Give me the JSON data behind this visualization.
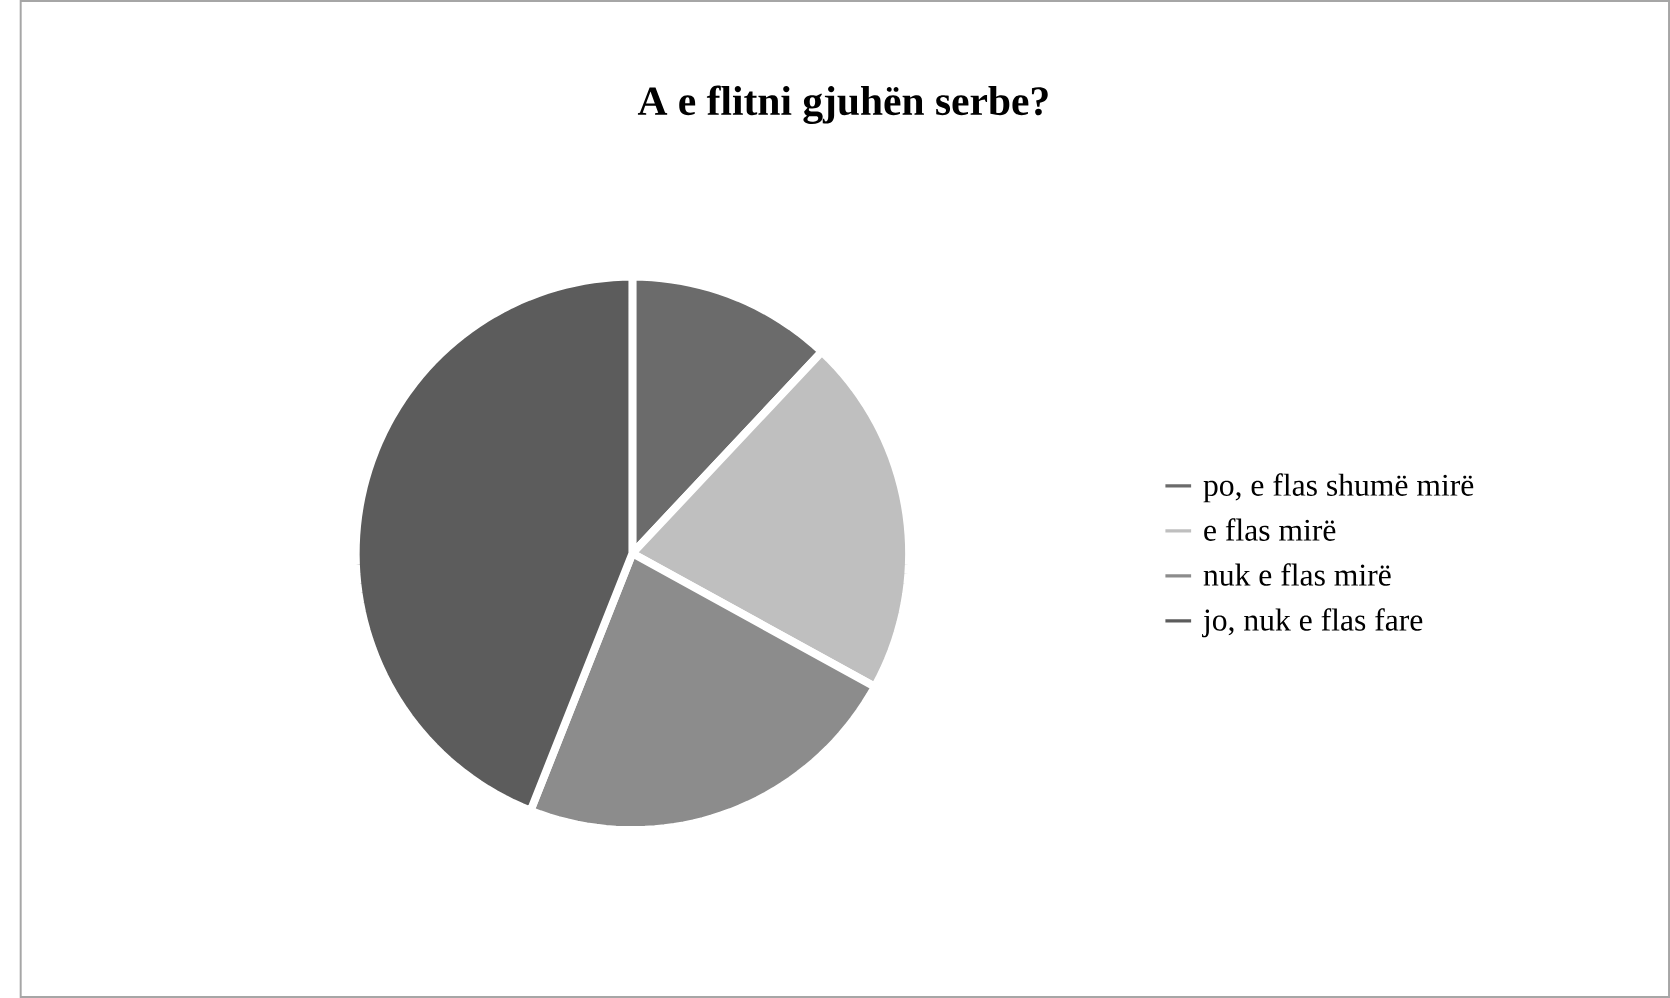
{
  "chart_data": {
    "type": "pie",
    "title": "A e flitni gjuhën serbe?",
    "categories": [
      "po, e flas shumë mirë",
      "e flas mirë",
      "nuk e flas mirë",
      "jo, nuk e flas fare"
    ],
    "values": [
      12,
      21,
      23,
      44
    ],
    "colors": [
      "#6b6b6b",
      "#bfbfbf",
      "#8c8c8c",
      "#5c5c5c"
    ],
    "legend": "right"
  }
}
